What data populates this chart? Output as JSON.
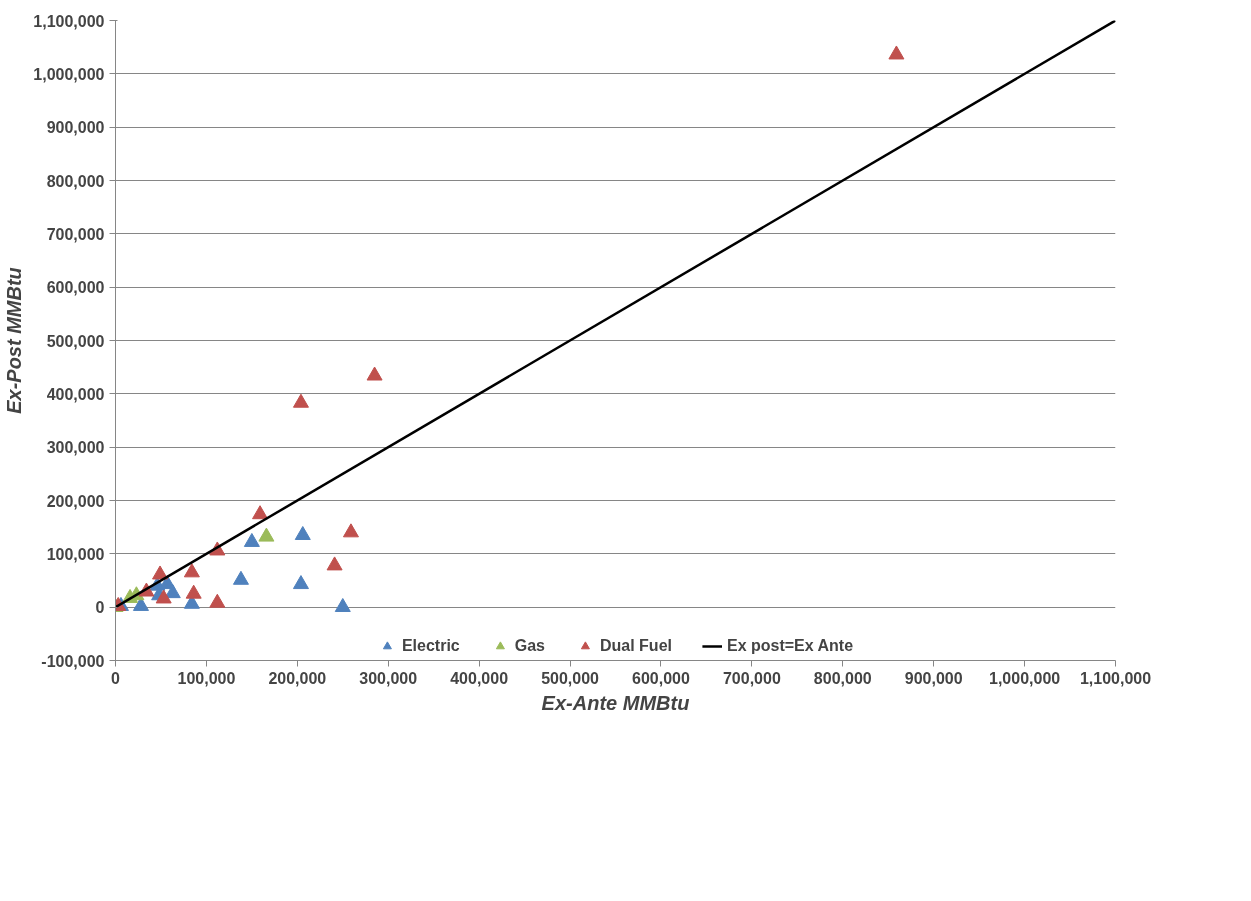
{
  "chart_data": {
    "type": "scatter",
    "xlabel": "Ex-Ante MMBtu",
    "ylabel": "Ex-Post MMBtu",
    "xlim": [
      0,
      1100000
    ],
    "ylim": [
      -100000,
      1100000
    ],
    "xticks": [
      {
        "value": 0,
        "label": "0"
      },
      {
        "value": 100000,
        "label": "100,000"
      },
      {
        "value": 200000,
        "label": "200,000"
      },
      {
        "value": 300000,
        "label": "300,000"
      },
      {
        "value": 400000,
        "label": "400,000"
      },
      {
        "value": 500000,
        "label": "500,000"
      },
      {
        "value": 600000,
        "label": "600,000"
      },
      {
        "value": 700000,
        "label": "700,000"
      },
      {
        "value": 800000,
        "label": "800,000"
      },
      {
        "value": 900000,
        "label": "900,000"
      },
      {
        "value": 1000000,
        "label": "1,000,000"
      },
      {
        "value": 1100000,
        "label": "1,100,000"
      }
    ],
    "yticks": [
      {
        "value": -100000,
        "label": "-100,000"
      },
      {
        "value": 0,
        "label": "0"
      },
      {
        "value": 100000,
        "label": "100,000"
      },
      {
        "value": 200000,
        "label": "200,000"
      },
      {
        "value": 300000,
        "label": "300,000"
      },
      {
        "value": 400000,
        "label": "400,000"
      },
      {
        "value": 500000,
        "label": "500,000"
      },
      {
        "value": 600000,
        "label": "600,000"
      },
      {
        "value": 700000,
        "label": "700,000"
      },
      {
        "value": 800000,
        "label": "800,000"
      },
      {
        "value": 900000,
        "label": "900,000"
      },
      {
        "value": 1000000,
        "label": "1,000,000"
      },
      {
        "value": 1100000,
        "label": "1,100,000"
      }
    ],
    "grid": "y",
    "legend": "bottom",
    "marker": "triangle",
    "series": [
      {
        "name": "Electric",
        "color": "#4f81bd",
        "x": [
          6000,
          28000,
          46000,
          57000,
          63000,
          48000,
          84000,
          138000,
          204000,
          150000,
          206000,
          250000
        ],
        "values": [
          2000,
          2000,
          40000,
          43000,
          26000,
          22000,
          6000,
          51000,
          43000,
          122000,
          135000,
          0
        ]
      },
      {
        "name": "Gas",
        "color": "#9bbb59",
        "x": [
          0,
          16000,
          23000,
          166000
        ],
        "values": [
          0,
          17000,
          22000,
          132000
        ]
      },
      {
        "name": "Dual Fuel",
        "color": "#c0504d",
        "x": [
          859000,
          285000,
          204000,
          159000,
          259000,
          241000,
          112000,
          49000,
          84000,
          86000,
          34000,
          53000,
          112000,
          3000
        ],
        "values": [
          1036000,
          434000,
          383000,
          174000,
          140000,
          78000,
          106000,
          61000,
          65000,
          25000,
          29000,
          16000,
          8000,
          2000
        ]
      },
      {
        "name": "Ex post=Ex Ante",
        "type": "line",
        "color": "#000000",
        "marker": "none",
        "x": [
          0,
          1100000
        ],
        "values": [
          0,
          1100000
        ]
      }
    ]
  }
}
